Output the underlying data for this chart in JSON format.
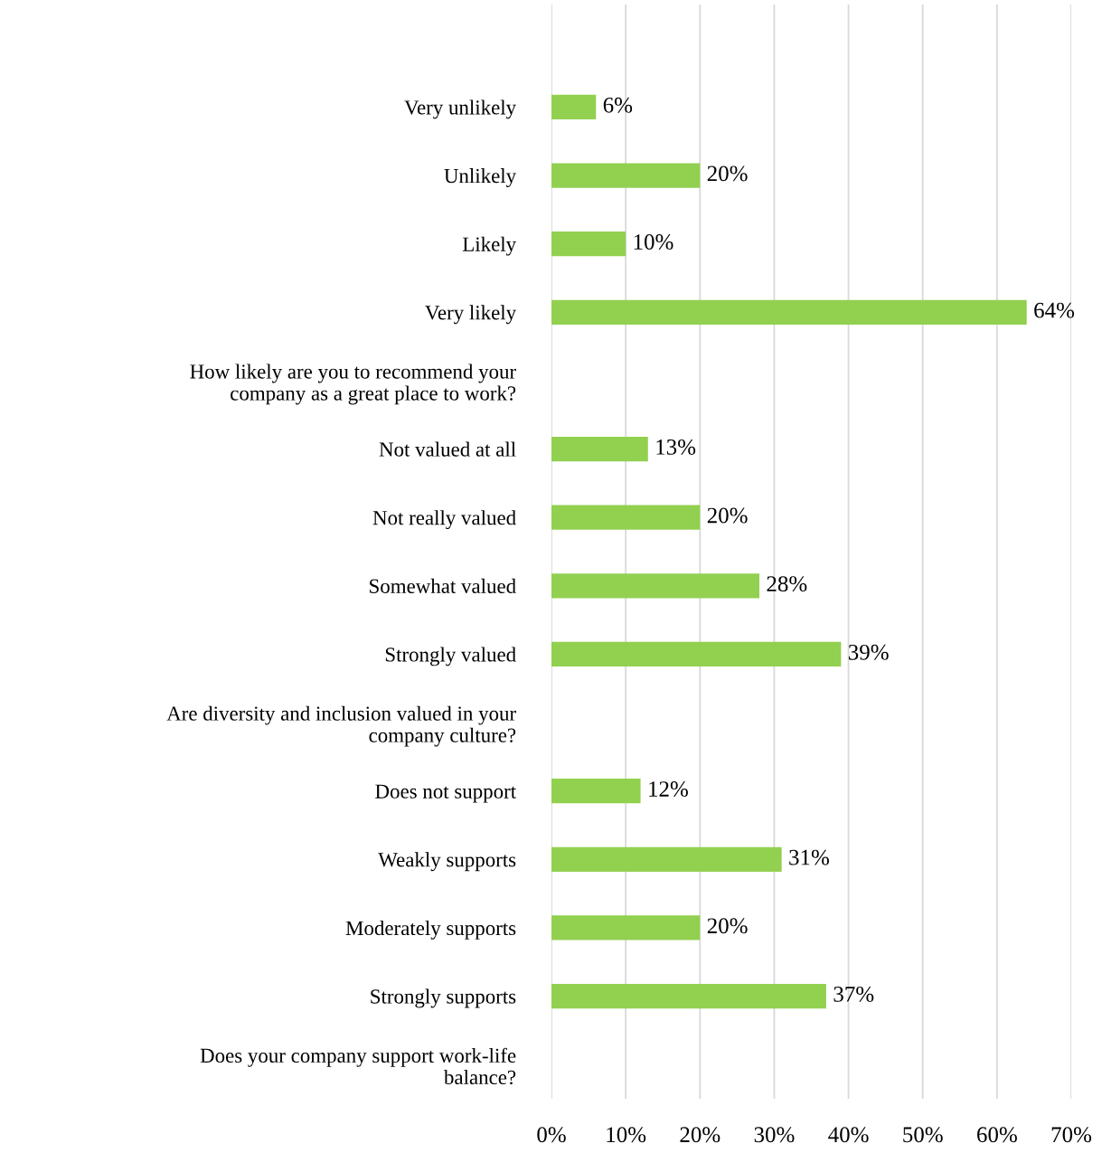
{
  "chart_data": {
    "type": "bar",
    "orientation": "horizontal",
    "categories": [
      "Very unlikely",
      "Unlikely",
      "Likely",
      "Very likely",
      "How likely are you to recommend your company as a great place to work?",
      "Not valued at all",
      "Not really valued",
      "Somewhat valued",
      "Strongly valued",
      "Are diversity and inclusion valued in your company culture?",
      "Does not support",
      "Weakly supports",
      "Moderately supports",
      "Strongly supports",
      "Does your company support work-life balance?"
    ],
    "values": [
      6,
      20,
      10,
      64,
      null,
      13,
      20,
      28,
      39,
      null,
      12,
      31,
      20,
      37,
      null
    ],
    "value_labels": [
      "6%",
      "20%",
      "10%",
      "64%",
      null,
      "13%",
      "20%",
      "28%",
      "39%",
      null,
      "12%",
      "31%",
      "20%",
      "37%",
      null
    ],
    "color": "#92d050",
    "xlim": [
      0,
      70
    ],
    "xticks": [
      {
        "value": 0,
        "label": "0%"
      },
      {
        "value": 10,
        "label": "10%"
      },
      {
        "value": 20,
        "label": "20%"
      },
      {
        "value": 30,
        "label": "30%"
      },
      {
        "value": 40,
        "label": "40%"
      },
      {
        "value": 50,
        "label": "50%"
      },
      {
        "value": 60,
        "label": "60%"
      },
      {
        "value": 70,
        "label": "70%"
      }
    ],
    "grid": "x",
    "legend": false
  }
}
